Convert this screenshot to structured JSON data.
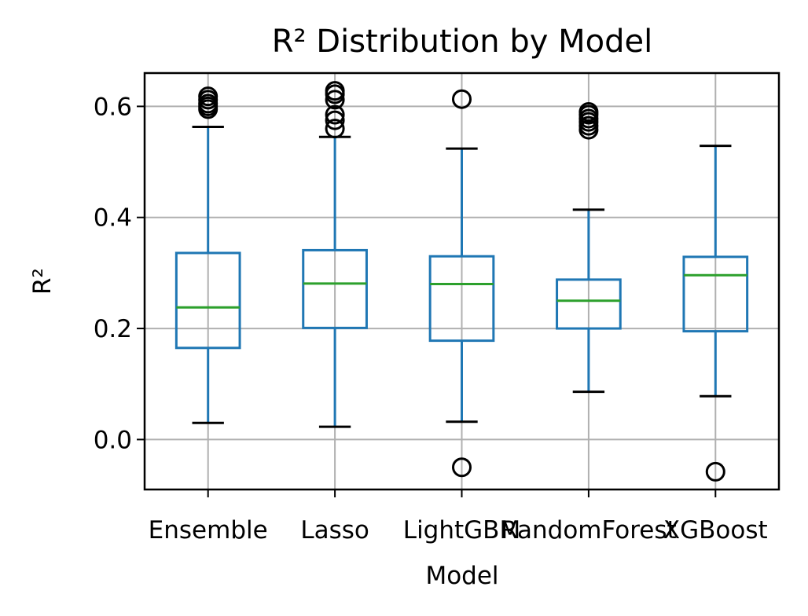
{
  "chart_data": {
    "type": "box",
    "title": "R² Distribution by Model",
    "xlabel": "Model",
    "ylabel": "R²",
    "ylim": [
      -0.09,
      0.66
    ],
    "yticks": [
      0.0,
      0.2,
      0.4,
      0.6
    ],
    "ytick_labels": [
      "0.0",
      "0.2",
      "0.4",
      "0.6"
    ],
    "grid": true,
    "categories": [
      "Ensemble",
      "Lasso",
      "LightGBM",
      "RandomForest",
      "XGBoost"
    ],
    "boxes": [
      {
        "name": "Ensemble",
        "whislo": 0.03,
        "q1": 0.165,
        "med": 0.238,
        "q3": 0.336,
        "whishi": 0.563,
        "fliers": [
          0.595,
          0.6,
          0.605,
          0.612,
          0.618
        ]
      },
      {
        "name": "Lasso",
        "whislo": 0.023,
        "q1": 0.201,
        "med": 0.281,
        "q3": 0.341,
        "whishi": 0.545,
        "fliers": [
          0.56,
          0.575,
          0.585,
          0.612,
          0.622,
          0.628
        ]
      },
      {
        "name": "LightGBM",
        "whislo": 0.032,
        "q1": 0.178,
        "med": 0.28,
        "q3": 0.33,
        "whishi": 0.524,
        "fliers": [
          -0.05,
          0.613
        ]
      },
      {
        "name": "RandomForest",
        "whislo": 0.086,
        "q1": 0.2,
        "med": 0.25,
        "q3": 0.288,
        "whishi": 0.414,
        "fliers": [
          0.558,
          0.565,
          0.572,
          0.578,
          0.585,
          0.59
        ]
      },
      {
        "name": "XGBoost",
        "whislo": 0.078,
        "q1": 0.195,
        "med": 0.296,
        "q3": 0.329,
        "whishi": 0.529,
        "fliers": [
          -0.058
        ]
      }
    ],
    "colors": {
      "box": "#1f77b4",
      "median": "#2ca02c",
      "cap": "#000000",
      "flier": "#000000",
      "grid": "#b0b0b0"
    }
  }
}
